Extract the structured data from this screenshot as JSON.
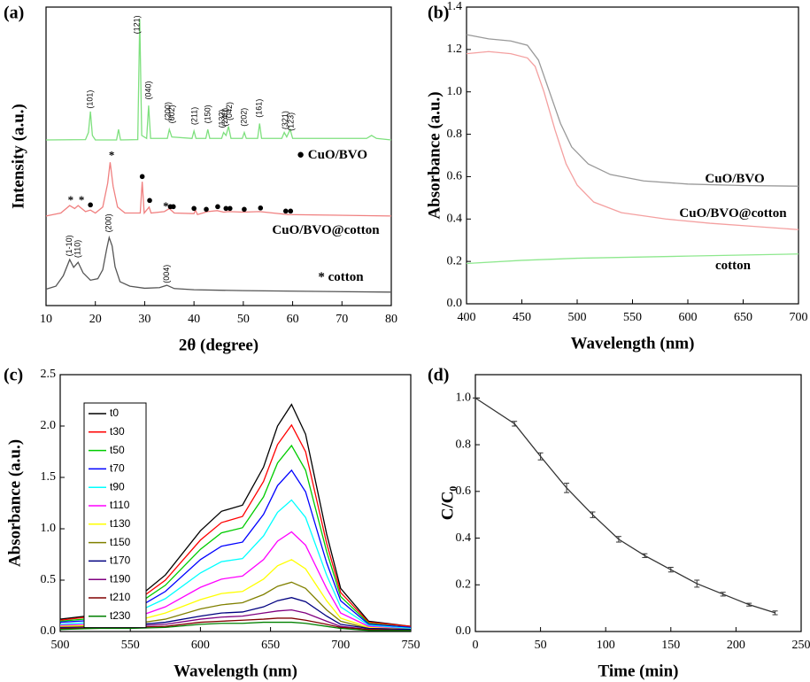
{
  "chart_data": [
    {
      "type": "line",
      "panel_label": "(a)",
      "x_label": "2θ (degree)",
      "y_label": "Intensity (a.u.)",
      "xlim": [
        10,
        80
      ],
      "ylim": [
        0,
        100
      ],
      "xticks": [
        10,
        20,
        30,
        40,
        50,
        60,
        70,
        80
      ],
      "series": [
        {
          "name": "CuO/BVO",
          "symbol": "●",
          "color": "#7ee07e",
          "x": [
            10,
            18,
            18.6,
            19,
            19.4,
            20,
            24.3,
            24.7,
            25.1,
            28.6,
            29.0,
            29.4,
            30.4,
            30.8,
            31.2,
            34.6,
            35.0,
            35.5,
            39.6,
            40.0,
            40.4,
            42.4,
            42.8,
            43.2,
            45.6,
            46.0,
            46.5,
            47.0,
            47.5,
            49.8,
            50.2,
            50.6,
            52.9,
            53.3,
            53.7,
            57.8,
            58.3,
            58.8,
            59.5,
            60.0,
            75,
            76,
            77,
            80
          ],
          "values": [
            55.5,
            55.6,
            58,
            65,
            57,
            55.5,
            55.5,
            59,
            55.5,
            55.6,
            96,
            57,
            56,
            67,
            56,
            56,
            59,
            56.5,
            56,
            58.5,
            56,
            56,
            59,
            56,
            56,
            58,
            57,
            60,
            56,
            56,
            58,
            56,
            56,
            61,
            56,
            56,
            58,
            56.5,
            59,
            56,
            56,
            57,
            56,
            55.5
          ]
        },
        {
          "name": "CuO/BVO@cotton",
          "color": "#f08080",
          "x": [
            10,
            13,
            14.8,
            15.8,
            16.5,
            18,
            19,
            20,
            21.5,
            22.5,
            23,
            23.6,
            24.5,
            26,
            29.1,
            29.5,
            29.9,
            30.9,
            31.3,
            34,
            35,
            36,
            40,
            40.3,
            40.7,
            42.8,
            44.7,
            46,
            47,
            50,
            53.3,
            59,
            80
          ],
          "values": [
            30,
            31,
            33.5,
            32.5,
            33.5,
            31.5,
            32,
            31,
            33,
            41,
            48,
            40,
            33,
            31,
            31,
            41.5,
            31,
            33,
            31,
            31.5,
            32.5,
            31,
            30.8,
            32,
            30.5,
            31.5,
            31.8,
            31.3,
            31.5,
            31.3,
            31.5,
            30.5,
            30
          ]
        },
        {
          "name": "cotton",
          "symbol": "*",
          "color": "#555555",
          "x": [
            10,
            12,
            13.5,
            14.8,
            15.6,
            16.5,
            17.5,
            19,
            20.5,
            21.5,
            22.3,
            22.8,
            23.4,
            24,
            25,
            27,
            30,
            33,
            34.5,
            36,
            40,
            50,
            80
          ],
          "values": [
            5.5,
            6.5,
            10,
            15.4,
            12.8,
            14.5,
            11,
            8.5,
            9,
            12,
            19,
            22.8,
            20,
            13,
            8,
            6.5,
            5.8,
            6,
            6.8,
            5.7,
            5.3,
            5,
            4.5
          ]
        }
      ],
      "peak_labels": [
        {
          "text": "(101)",
          "x": 19,
          "y": 66
        },
        {
          "text": "(121)",
          "x": 28.5,
          "y": 91
        },
        {
          "text": "(040)",
          "x": 30.8,
          "y": 69
        },
        {
          "text": "(200)",
          "x": 34.8,
          "y": 62
        },
        {
          "text": "(002)",
          "x": 35.6,
          "y": 61
        },
        {
          "text": "(211)",
          "x": 40.2,
          "y": 60.5
        },
        {
          "text": "(150)",
          "x": 42.9,
          "y": 61
        },
        {
          "text": "(132)",
          "x": 45.7,
          "y": 59.5
        },
        {
          "text": "(240)",
          "x": 46.4,
          "y": 60
        },
        {
          "text": "(042)",
          "x": 47.3,
          "y": 62
        },
        {
          "text": "(202)",
          "x": 50.2,
          "y": 60
        },
        {
          "text": "(161)",
          "x": 53.3,
          "y": 63
        },
        {
          "text": "(321)",
          "x": 58.6,
          "y": 59
        },
        {
          "text": "(123)",
          "x": 59.7,
          "y": 58.5
        },
        {
          "text": "(1-10)",
          "x": 14.8,
          "y": 16.5
        },
        {
          "text": "(110)",
          "x": 16.5,
          "y": 16
        },
        {
          "text": "(200)",
          "x": 22.8,
          "y": 24.5
        },
        {
          "text": "(004)",
          "x": 34.5,
          "y": 7.5
        }
      ],
      "symbols": [
        {
          "text": "*",
          "x": 15.0,
          "y": 35
        },
        {
          "text": "*",
          "x": 17.2,
          "y": 35
        },
        {
          "text": "*",
          "x": 23.3,
          "y": 50
        },
        {
          "text": "*",
          "x": 34.3,
          "y": 33
        },
        {
          "text": "●",
          "x": 19,
          "y": 33.5
        },
        {
          "text": "●",
          "x": 29.5,
          "y": 43
        },
        {
          "text": "●",
          "x": 31,
          "y": 35
        },
        {
          "text": "●",
          "x": 35.2,
          "y": 33
        },
        {
          "text": "●",
          "x": 35.8,
          "y": 33
        },
        {
          "text": "●",
          "x": 40,
          "y": 32.3
        },
        {
          "text": "●",
          "x": 42.5,
          "y": 32
        },
        {
          "text": "●",
          "x": 44.8,
          "y": 33
        },
        {
          "text": "●",
          "x": 46.5,
          "y": 32.3
        },
        {
          "text": "●",
          "x": 47.3,
          "y": 32.3
        },
        {
          "text": "●",
          "x": 50.2,
          "y": 32
        },
        {
          "text": "●",
          "x": 53.5,
          "y": 32.5
        },
        {
          "text": "●",
          "x": 58.6,
          "y": 31.5
        },
        {
          "text": "●",
          "x": 59.6,
          "y": 31.5
        }
      ]
    },
    {
      "type": "line",
      "panel_label": "(b)",
      "x_label": "Wavelength (nm)",
      "y_label": "Absorbance (a.u.)",
      "xlim": [
        400,
        700
      ],
      "ylim": [
        0,
        1.4
      ],
      "xticks": [
        400,
        450,
        500,
        550,
        600,
        650,
        700
      ],
      "yticks": [
        {
          "value": 0,
          "label": "0.0"
        },
        {
          "value": 0.2,
          "label": "0.2"
        },
        {
          "value": 0.4,
          "label": "0.4"
        },
        {
          "value": 0.6,
          "label": "0.6"
        },
        {
          "value": 0.8,
          "label": "0.8"
        },
        {
          "value": 1,
          "label": "1.0"
        },
        {
          "value": 1.2,
          "label": "1.2"
        },
        {
          "value": 1.4,
          "label": "1.4"
        }
      ],
      "series": [
        {
          "name": "CuO/BVO",
          "color": "#999999",
          "x": [
            400,
            420,
            440,
            455,
            465,
            475,
            485,
            495,
            510,
            530,
            560,
            600,
            650,
            700
          ],
          "values": [
            1.27,
            1.25,
            1.24,
            1.22,
            1.15,
            1.0,
            0.85,
            0.74,
            0.66,
            0.61,
            0.58,
            0.565,
            0.558,
            0.555
          ]
        },
        {
          "name": "CuO/BVO@cotton",
          "color": "#f4a0a0",
          "x": [
            400,
            420,
            440,
            455,
            462,
            470,
            480,
            490,
            500,
            515,
            540,
            580,
            620,
            660,
            700
          ],
          "values": [
            1.18,
            1.19,
            1.18,
            1.16,
            1.12,
            1.0,
            0.82,
            0.66,
            0.56,
            0.48,
            0.43,
            0.4,
            0.38,
            0.365,
            0.35
          ]
        },
        {
          "name": "cotton",
          "color": "#8ee88e",
          "x": [
            400,
            450,
            500,
            600,
            700
          ],
          "values": [
            0.19,
            0.205,
            0.215,
            0.225,
            0.235
          ]
        }
      ]
    },
    {
      "type": "line",
      "panel_label": "(c)",
      "x_label": "Wavelength (nm)",
      "y_label": "Absorbance (a.u.)",
      "xlim": [
        500,
        750
      ],
      "ylim": [
        0,
        2.5
      ],
      "xticks": [
        500,
        550,
        600,
        650,
        700,
        750
      ],
      "yticks": [
        {
          "value": 0,
          "label": "0.0"
        },
        {
          "value": 0.5,
          "label": "0.5"
        },
        {
          "value": 1,
          "label": "1.0"
        },
        {
          "value": 1.5,
          "label": "1.5"
        },
        {
          "value": 2,
          "label": "2.0"
        },
        {
          "value": 2.5,
          "label": "2.5"
        }
      ],
      "legend": true,
      "x": [
        500,
        525,
        550,
        575,
        600,
        615,
        630,
        645,
        655,
        665,
        675,
        690,
        700,
        720,
        750
      ],
      "series": [
        {
          "name": "t0",
          "color": "#000000",
          "values": [
            0.12,
            0.16,
            0.27,
            0.55,
            0.98,
            1.17,
            1.23,
            1.6,
            2.0,
            2.21,
            1.92,
            0.95,
            0.42,
            0.1,
            0.05
          ]
        },
        {
          "name": "t30",
          "color": "#ff0000",
          "values": [
            0.11,
            0.15,
            0.25,
            0.5,
            0.89,
            1.06,
            1.12,
            1.46,
            1.82,
            2.01,
            1.75,
            0.86,
            0.38,
            0.09,
            0.05
          ]
        },
        {
          "name": "t50",
          "color": "#00cc00",
          "values": [
            0.1,
            0.13,
            0.22,
            0.45,
            0.8,
            0.96,
            1.01,
            1.31,
            1.64,
            1.81,
            1.57,
            0.78,
            0.34,
            0.08,
            0.04
          ]
        },
        {
          "name": "t70",
          "color": "#0000ff",
          "values": [
            0.09,
            0.11,
            0.19,
            0.39,
            0.7,
            0.83,
            0.87,
            1.14,
            1.42,
            1.57,
            1.36,
            0.67,
            0.3,
            0.07,
            0.04
          ]
        },
        {
          "name": "t90",
          "color": "#00ffff",
          "values": [
            0.07,
            0.09,
            0.16,
            0.32,
            0.57,
            0.68,
            0.71,
            0.93,
            1.16,
            1.28,
            1.11,
            0.55,
            0.24,
            0.06,
            0.03
          ]
        },
        {
          "name": "t110",
          "color": "#ff00ff",
          "values": [
            0.06,
            0.07,
            0.12,
            0.24,
            0.43,
            0.51,
            0.54,
            0.7,
            0.88,
            0.97,
            0.84,
            0.42,
            0.18,
            0.05,
            0.02
          ]
        },
        {
          "name": "t130",
          "color": "#ffff00",
          "values": [
            0.05,
            0.06,
            0.09,
            0.18,
            0.31,
            0.37,
            0.39,
            0.51,
            0.64,
            0.7,
            0.61,
            0.3,
            0.13,
            0.04,
            0.02
          ]
        },
        {
          "name": "t150",
          "color": "#808000",
          "values": [
            0.04,
            0.05,
            0.07,
            0.12,
            0.22,
            0.26,
            0.28,
            0.36,
            0.44,
            0.48,
            0.42,
            0.21,
            0.1,
            0.03,
            0.02
          ]
        },
        {
          "name": "t170",
          "color": "#000080",
          "values": [
            0.04,
            0.04,
            0.06,
            0.09,
            0.15,
            0.18,
            0.19,
            0.24,
            0.3,
            0.33,
            0.29,
            0.15,
            0.07,
            0.03,
            0.02
          ]
        },
        {
          "name": "t190",
          "color": "#800080",
          "values": [
            0.03,
            0.04,
            0.05,
            0.07,
            0.12,
            0.14,
            0.15,
            0.18,
            0.2,
            0.21,
            0.18,
            0.1,
            0.05,
            0.02,
            0.01
          ]
        },
        {
          "name": "t210",
          "color": "#800000",
          "values": [
            0.03,
            0.03,
            0.04,
            0.05,
            0.09,
            0.1,
            0.11,
            0.12,
            0.13,
            0.13,
            0.11,
            0.07,
            0.04,
            0.02,
            0.01
          ]
        },
        {
          "name": "t230",
          "color": "#008000",
          "values": [
            0.02,
            0.03,
            0.03,
            0.04,
            0.07,
            0.08,
            0.08,
            0.09,
            0.09,
            0.09,
            0.08,
            0.05,
            0.03,
            0.01,
            0.01
          ]
        }
      ]
    },
    {
      "type": "line",
      "panel_label": "(d)",
      "x_label": "Time (min)",
      "y_label": "C/C₀",
      "xlim": [
        0,
        250
      ],
      "ylim": [
        0,
        1.1
      ],
      "xticks": [
        0,
        50,
        100,
        150,
        200,
        250
      ],
      "yticks": [
        {
          "value": 0,
          "label": "0.0"
        },
        {
          "value": 0.2,
          "label": "0.2"
        },
        {
          "value": 0.4,
          "label": "0.4"
        },
        {
          "value": 0.6,
          "label": "0.6"
        },
        {
          "value": 0.8,
          "label": "0.8"
        },
        {
          "value": 1,
          "label": "1.0"
        }
      ],
      "series": [
        {
          "color": "#333333",
          "x": [
            0,
            30,
            50,
            70,
            90,
            110,
            130,
            150,
            170,
            190,
            210,
            230
          ],
          "values": [
            1.0,
            0.89,
            0.75,
            0.615,
            0.5,
            0.395,
            0.325,
            0.265,
            0.205,
            0.16,
            0.115,
            0.08
          ],
          "errors": [
            0,
            0.01,
            0.015,
            0.02,
            0.012,
            0.012,
            0.008,
            0.01,
            0.015,
            0.008,
            0.006,
            0.008
          ]
        }
      ]
    }
  ]
}
